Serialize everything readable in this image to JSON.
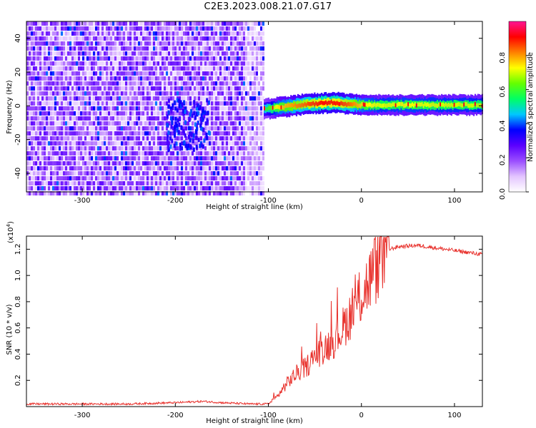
{
  "title": "C2E3.2023.008.21.07.G17",
  "chart_data": [
    {
      "type": "heatmap",
      "xlabel": "Height of straight line (km)",
      "ylabel": "Frequency (Hz)",
      "xlim": [
        -360,
        130
      ],
      "ylim": [
        -51,
        50
      ],
      "xticks": [
        -300,
        -200,
        -100,
        0,
        100
      ],
      "yticks": [
        -40,
        -20,
        0,
        20,
        40
      ],
      "colorbar": {
        "label": "Normalized spectral amplitude",
        "range": [
          0.0,
          1.0
        ],
        "ticks": [
          "0.0",
          "0.2",
          "0.4",
          "0.6",
          "0.8"
        ],
        "tick_values": [
          0.0,
          0.2,
          0.4,
          0.6,
          0.8
        ],
        "colors": [
          "#ffffff",
          "#e3c4ff",
          "#9a4dff",
          "#5a00ff",
          "#0000ff",
          "#00c8ff",
          "#00ff64",
          "#64ff00",
          "#ffff00",
          "#ff8000",
          "#ff0000",
          "#ff1493"
        ]
      },
      "noise_region": {
        "x_from": -360,
        "x_to": -105,
        "y_from": -51,
        "y_to": 50,
        "typical_amplitude": 0.15
      },
      "signal_band": [
        {
          "x": -105,
          "freq": -2,
          "amplitude": 0.55
        },
        {
          "x": -90,
          "freq": -1,
          "amplitude": 0.75
        },
        {
          "x": -75,
          "freq": 0,
          "amplitude": 0.8
        },
        {
          "x": -60,
          "freq": 1,
          "amplitude": 0.85
        },
        {
          "x": -45,
          "freq": 1.5,
          "amplitude": 0.9
        },
        {
          "x": -30,
          "freq": 2,
          "amplitude": 0.9
        },
        {
          "x": -15,
          "freq": 1,
          "amplitude": 0.85
        },
        {
          "x": 0,
          "freq": 0.5,
          "amplitude": 0.75
        },
        {
          "x": 20,
          "freq": 0.5,
          "amplitude": 0.7
        },
        {
          "x": 50,
          "freq": 0.5,
          "amplitude": 0.72
        },
        {
          "x": 80,
          "freq": 0.5,
          "amplitude": 0.7
        },
        {
          "x": 110,
          "freq": 0.5,
          "amplitude": 0.7
        },
        {
          "x": 130,
          "freq": 0.5,
          "amplitude": 0.68
        }
      ]
    },
    {
      "type": "line",
      "xlabel": "Height of straight line (km)",
      "ylabel": "SNR (10 * v/v)",
      "y_multiplier": "(x10",
      "y_multiplier_exponent": "4",
      "y_multiplier_close": ")",
      "xlim": [
        -360,
        130
      ],
      "ylim": [
        0,
        1.3
      ],
      "xticks": [
        -300,
        -200,
        -100,
        0,
        100
      ],
      "yticks": [
        "0.2",
        "0.4",
        "0.6",
        "0.8",
        "1.0",
        "1.2"
      ],
      "ytick_values": [
        0.2,
        0.4,
        0.6,
        0.8,
        1.0,
        1.2
      ],
      "color": "#e8312c",
      "series": [
        {
          "x": [
            -360,
            -300,
            -250,
            -200,
            -170,
            -150,
            -120,
            -100,
            -90,
            -80,
            -70,
            -60,
            -50,
            -40,
            -30,
            -20,
            -10,
            0,
            10,
            20,
            30,
            40,
            60,
            80,
            100,
            130
          ],
          "y": [
            0.02,
            0.02,
            0.02,
            0.03,
            0.04,
            0.03,
            0.02,
            0.02,
            0.08,
            0.18,
            0.25,
            0.3,
            0.38,
            0.45,
            0.5,
            0.6,
            0.72,
            0.85,
            0.98,
            1.12,
            1.2,
            1.22,
            1.23,
            1.21,
            1.19,
            1.16
          ]
        }
      ]
    }
  ]
}
